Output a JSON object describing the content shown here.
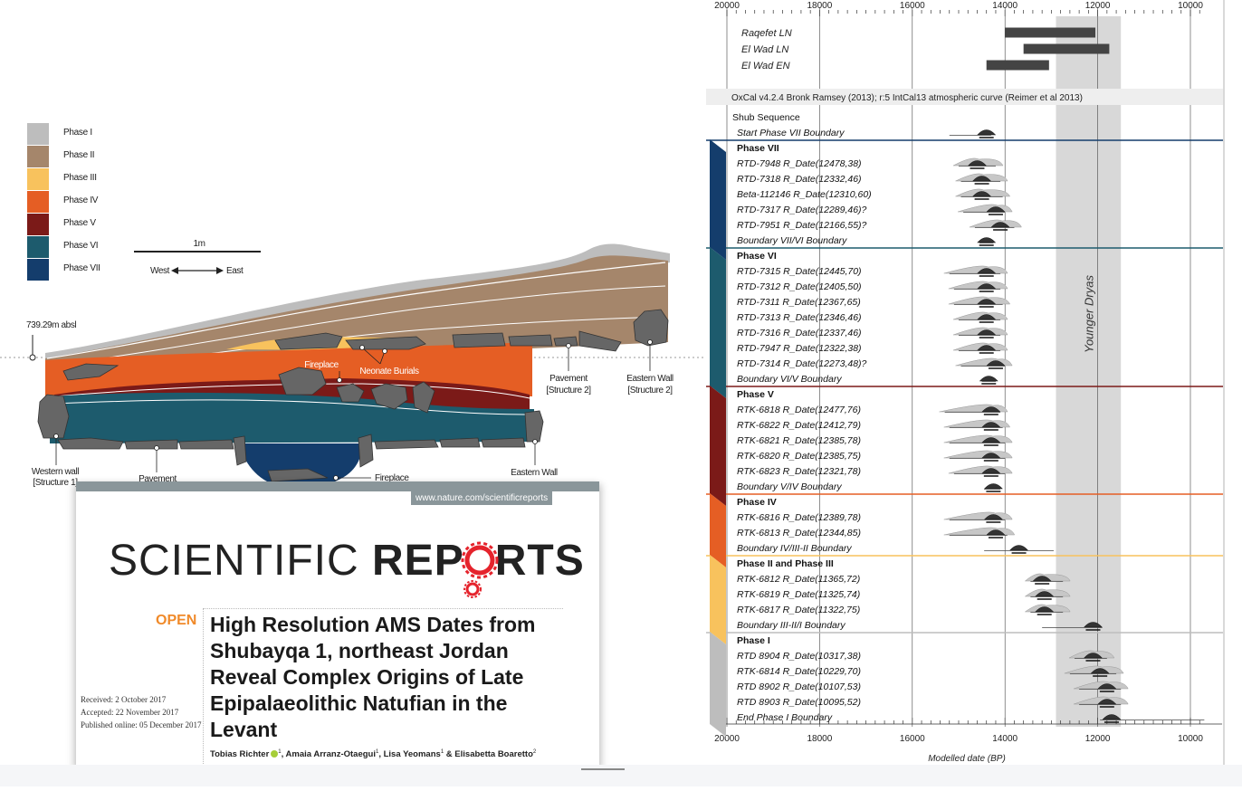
{
  "section_figure": {
    "legend": [
      {
        "label": "Phase I",
        "color": "#bdbdbd"
      },
      {
        "label": "Phase II",
        "color": "#a5866b"
      },
      {
        "label": "Phase III",
        "color": "#f8c25d"
      },
      {
        "label": "Phase IV",
        "color": "#e55e24"
      },
      {
        "label": "Phase V",
        "color": "#7b1a18"
      },
      {
        "label": "Phase VI",
        "color": "#1d5b6d"
      },
      {
        "label": "Phase VII",
        "color": "#143d6c"
      }
    ],
    "scale_label": "1m",
    "west_label": "West",
    "east_label": "East",
    "elevation_label": "739.29m absl",
    "labels": {
      "fireplace_upper": "Fireplace",
      "neonate_burials": "Neonate Burials",
      "pavement_structure2_line1": "Pavement",
      "pavement_structure2_line2": "[Structure 2]",
      "eastern_wall_upper_line1": "Eastern Wall",
      "eastern_wall_upper_line2": "[Structure 2]",
      "western_wall_line1": "Western wall",
      "western_wall_line2": "[Structure 1]",
      "pavement_lower": "Pavement",
      "fireplace_lower": "Fireplace",
      "eastern_wall_lower": "Eastern Wall"
    }
  },
  "paper": {
    "url": "www.nature.com/scientificreports",
    "brand_thin": "SCIENTIFIC ",
    "brand_bold_a": "REP",
    "brand_bold_b": "RTS",
    "open_label": "OPEN",
    "title": "High Resolution AMS Dates from Shubayqa 1, northeast Jordan Reveal Complex Origins of Late Epipalaeolithic Natufian in the Levant",
    "received": "Received: 2 October 2017",
    "accepted": "Accepted: 22 November 2017",
    "published": "Published online: 05 December 2017",
    "authors": "Tobias Richter",
    "authors_rest": ", Amaia Arranz-Otaegui",
    "authors_rest2": ", Lisa Yeomans",
    "authors_rest3": " & Elisabetta Boaretto",
    "sup1": "1",
    "sup2": "2"
  },
  "chart_data": {
    "type": "ranges",
    "x_axis": {
      "ticks": [
        20000,
        18000,
        16000,
        14000,
        12000,
        10000
      ],
      "xlim": [
        20000,
        9700
      ],
      "reversed": true,
      "label": "Modelled date (BP)"
    },
    "shaded_band": {
      "label": "Younger Dryas",
      "from": 12900,
      "to": 11500
    },
    "reference_bars": [
      {
        "label": "Raqefet LN",
        "from": 14000,
        "to": 12050
      },
      {
        "label": "El Wad LN",
        "from": 13600,
        "to": 11750
      },
      {
        "label": "El Wad EN",
        "from": 14400,
        "to": 13050
      }
    ],
    "calibration_note": "OxCal v4.2.4 Bronk Ramsey (2013); r:5 IntCal13 atmospheric curve (Reimer et al 2013)",
    "sequence_title": "Shub Sequence",
    "phases": [
      {
        "name": "Phase VII",
        "color": "#143d6c"
      },
      {
        "name": "Phase VI",
        "color": "#1d5b6d"
      },
      {
        "name": "Phase V",
        "color": "#7b1a18"
      },
      {
        "name": "Phase IV",
        "color": "#e55e24"
      },
      {
        "name": "Phase II and Phase III",
        "color": "#f8c25d"
      },
      {
        "name": "Phase I",
        "color": "#bdbdbd"
      }
    ],
    "rows": [
      {
        "label": "Shub Sequence",
        "kind": "seq"
      },
      {
        "label": "Start Phase VII Boundary",
        "kind": "boundary",
        "center": 14400,
        "from": 15200,
        "to": 14300
      },
      {
        "label": "Phase VII",
        "kind": "phase",
        "phase": 0
      },
      {
        "label": "RTD-7948 R_Date(12478,38)",
        "kind": "date",
        "center": 14600,
        "from": 15000,
        "to": 14200
      },
      {
        "label": "RTD-7318 R_Date(12332,46)",
        "kind": "date",
        "center": 14500,
        "from": 14950,
        "to": 14100
      },
      {
        "label": "Beta-112146 R_Date(12310,60)",
        "kind": "date",
        "center": 14500,
        "from": 14950,
        "to": 14050
      },
      {
        "label": "RTD-7317 R_Date(12289,46)?",
        "kind": "date",
        "center": 14200,
        "from": 14900,
        "to": 14000
      },
      {
        "label": "RTD-7951 R_Date(12166,55)?",
        "kind": "date",
        "center": 14100,
        "from": 14650,
        "to": 13800
      },
      {
        "label": "Boundary VII/VI Boundary",
        "kind": "boundary",
        "center": 14400,
        "from": 14550,
        "to": 14250
      },
      {
        "label": "Phase VI",
        "kind": "phase",
        "phase": 1
      },
      {
        "label": "RTD-7315 R_Date(12445,70)",
        "kind": "date",
        "center": 14400,
        "from": 15200,
        "to": 14100
      },
      {
        "label": "RTD-7312 R_Date(12405,50)",
        "kind": "date",
        "center": 14400,
        "from": 15100,
        "to": 14100
      },
      {
        "label": "RTD-7311 R_Date(12367,65)",
        "kind": "date",
        "center": 14400,
        "from": 15100,
        "to": 14050
      },
      {
        "label": "RTD-7313 R_Date(12346,46)",
        "kind": "date",
        "center": 14400,
        "from": 15000,
        "to": 14100
      },
      {
        "label": "RTD-7316 R_Date(12337,46)",
        "kind": "date",
        "center": 14400,
        "from": 15000,
        "to": 14100
      },
      {
        "label": "RTD-7947 R_Date(12322,38)",
        "kind": "date",
        "center": 14400,
        "from": 15000,
        "to": 14100
      },
      {
        "label": "RTD-7314 R_Date(12273,48)?",
        "kind": "date",
        "center": 14200,
        "from": 14950,
        "to": 14000
      },
      {
        "label": "Boundary VI/V Boundary",
        "kind": "boundary",
        "center": 14350,
        "from": 14500,
        "to": 14200
      },
      {
        "label": "Phase V",
        "kind": "phase",
        "phase": 2
      },
      {
        "label": "RTK-6818 R_Date(12477,76)",
        "kind": "date",
        "center": 14300,
        "from": 15300,
        "to": 14100
      },
      {
        "label": "RTK-6822 R_Date(12412,79)",
        "kind": "date",
        "center": 14300,
        "from": 15200,
        "to": 14050
      },
      {
        "label": "RTK-6821 R_Date(12385,78)",
        "kind": "date",
        "center": 14300,
        "from": 15200,
        "to": 14000
      },
      {
        "label": "RTK-6820 R_Date(12385,75)",
        "kind": "date",
        "center": 14300,
        "from": 15200,
        "to": 14000
      },
      {
        "label": "RTK-6823 R_Date(12321,78)",
        "kind": "date",
        "center": 14300,
        "from": 15100,
        "to": 14000
      },
      {
        "label": "Boundary V/IV Boundary",
        "kind": "boundary",
        "center": 14250,
        "from": 14450,
        "to": 14100
      },
      {
        "label": "Phase IV",
        "kind": "phase",
        "phase": 3
      },
      {
        "label": "RTK-6816 R_Date(12389,78)",
        "kind": "date",
        "center": 14250,
        "from": 15200,
        "to": 14000
      },
      {
        "label": "RTK-6813 R_Date(12344,85)",
        "kind": "date",
        "center": 14200,
        "from": 15200,
        "to": 13950
      },
      {
        "label": "Boundary IV/III-II Boundary",
        "kind": "boundary",
        "center": 13700,
        "from": 14450,
        "to": 12950
      },
      {
        "label": "Phase II and Phase III",
        "kind": "phase",
        "phase": 4
      },
      {
        "label": "RTK-6812 R_Date(11365,72)",
        "kind": "date",
        "center": 13200,
        "from": 13450,
        "to": 12750
      },
      {
        "label": "RTK-6819 R_Date(11325,74)",
        "kind": "date",
        "center": 13150,
        "from": 13450,
        "to": 12750
      },
      {
        "label": "RTK-6817 R_Date(11322,75)",
        "kind": "date",
        "center": 13150,
        "from": 13450,
        "to": 12750
      },
      {
        "label": "Boundary III-II/I Boundary",
        "kind": "boundary",
        "center": 12100,
        "from": 13200,
        "to": 11900
      },
      {
        "label": "Phase I",
        "kind": "phase",
        "phase": 5
      },
      {
        "label": "RTD 8904 R_Date(10317,38)",
        "kind": "date",
        "center": 12100,
        "from": 12500,
        "to": 11800
      },
      {
        "label": "RTK-6814 R_Date(10229,70)",
        "kind": "date",
        "center": 11950,
        "from": 12600,
        "to": 11600
      },
      {
        "label": "RTD 8902 R_Date(10107,53)",
        "kind": "date",
        "center": 11800,
        "from": 12400,
        "to": 11500
      },
      {
        "label": "RTD 8903 R_Date(10095,52)",
        "kind": "date",
        "center": 11800,
        "from": 12400,
        "to": 11500
      },
      {
        "label": "End Phase I Boundary",
        "kind": "boundary",
        "center": 11700,
        "from": 11950,
        "to": 9700
      }
    ]
  }
}
